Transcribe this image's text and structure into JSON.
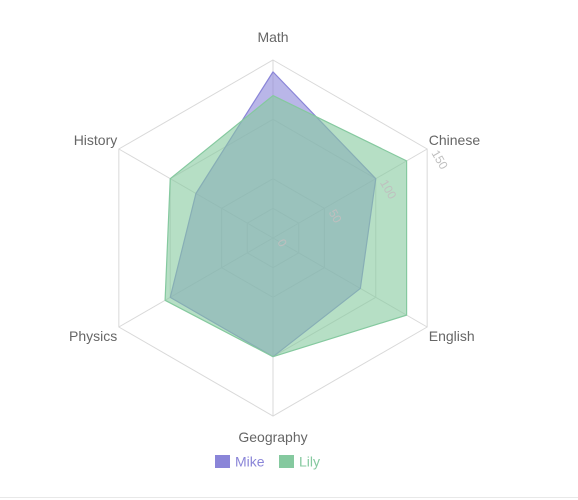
{
  "chart_data": {
    "type": "radar",
    "axes": [
      "Math",
      "Chinese",
      "English",
      "Geography",
      "Physics",
      "History"
    ],
    "max": 150,
    "radial_ticks": [
      "0",
      "50",
      "100",
      "150"
    ],
    "legend_position": "bottom-center",
    "series": [
      {
        "name": "Mike",
        "color": "#8a85d8",
        "values": [
          140,
          100,
          85,
          100,
          100,
          75
        ]
      },
      {
        "name": "Lily",
        "color": "#85c99f",
        "values": [
          120,
          130,
          130,
          100,
          105,
          100
        ]
      }
    ]
  }
}
